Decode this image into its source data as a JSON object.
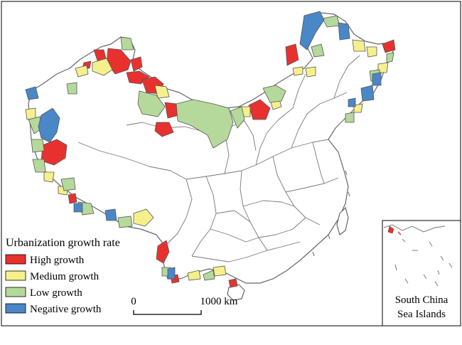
{
  "legend": {
    "title": "Urbanization growth rate",
    "items": [
      {
        "label": "High growth",
        "color": "#e8312f"
      },
      {
        "label": "Medium growth",
        "color": "#f6f08c"
      },
      {
        "label": "Low growth",
        "color": "#b5d99a"
      },
      {
        "label": "Negative growth",
        "color": "#4a87c7"
      }
    ]
  },
  "scale_bar": {
    "start_label": "0",
    "end_label": "1000 km"
  },
  "inset": {
    "line1": "South China",
    "line2": "Sea Islands"
  },
  "colors": {
    "border": "#666666",
    "background": "#ffffff",
    "frame": "#000000"
  }
}
